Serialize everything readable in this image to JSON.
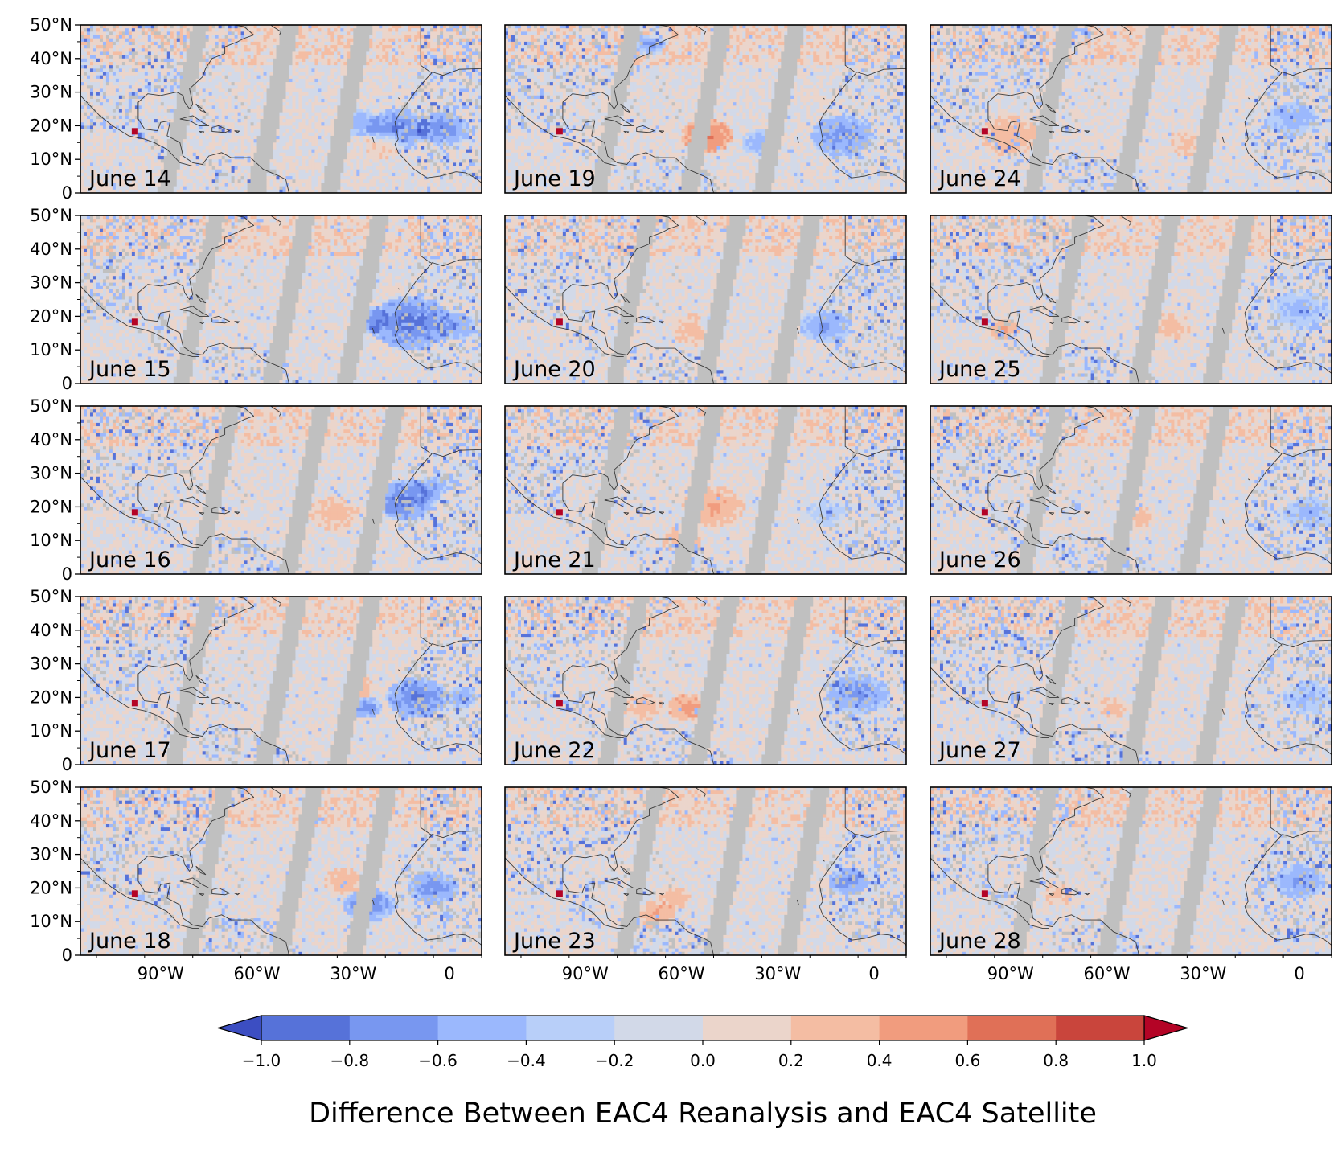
{
  "figure": {
    "title": "Difference Between EAC4 Reanalysis and EAC4 Satellite",
    "grid": {
      "rows": 5,
      "cols": 3
    },
    "map_extent": {
      "lon_min": -115,
      "lon_max": 10,
      "lat_min": 0,
      "lat_max": 50
    },
    "lat_ticks": [
      {
        "value": 0,
        "label": "0"
      },
      {
        "value": 10,
        "label": "10°N"
      },
      {
        "value": 20,
        "label": "20°N"
      },
      {
        "value": 30,
        "label": "30°N"
      },
      {
        "value": 40,
        "label": "40°N"
      },
      {
        "value": 50,
        "label": "50°N"
      }
    ],
    "lon_ticks": [
      {
        "value": -90,
        "label": "90°W"
      },
      {
        "value": -60,
        "label": "60°W"
      },
      {
        "value": -30,
        "label": "30°W"
      },
      {
        "value": 0,
        "label": "0"
      }
    ],
    "panels": [
      {
        "label": "June 14",
        "features": [
          {
            "lon": -16,
            "lat": 19,
            "r": 6,
            "v": -0.9
          },
          {
            "lon": -2,
            "lat": 19,
            "r": 5,
            "v": -0.85
          },
          {
            "lon": -28,
            "lat": 21,
            "r": 4,
            "v": -0.6
          },
          {
            "lon": -20,
            "lat": 14,
            "r": 4,
            "v": 0.25
          }
        ]
      },
      {
        "label": "June 15",
        "features": [
          {
            "lon": -12,
            "lat": 18,
            "r": 8,
            "v": -0.95
          },
          {
            "lon": -25,
            "lat": 19,
            "r": 4,
            "v": -0.7
          },
          {
            "lon": 2,
            "lat": 17,
            "r": 4,
            "v": -0.7
          }
        ]
      },
      {
        "label": "June 16",
        "features": [
          {
            "lon": -14,
            "lat": 22,
            "r": 6,
            "v": -0.95
          },
          {
            "lon": -36,
            "lat": 18,
            "r": 5,
            "v": 0.35
          },
          {
            "lon": -5,
            "lat": 26,
            "r": 3,
            "v": -0.7
          }
        ]
      },
      {
        "label": "June 17",
        "features": [
          {
            "lon": -10,
            "lat": 20,
            "r": 6,
            "v": -0.9
          },
          {
            "lon": -26,
            "lat": 17,
            "r": 3,
            "v": -0.8
          },
          {
            "lon": -28,
            "lat": 23,
            "r": 3,
            "v": 0.35
          },
          {
            "lon": 4,
            "lat": 20,
            "r": 3,
            "v": -0.7
          }
        ]
      },
      {
        "label": "June 18",
        "features": [
          {
            "lon": -25,
            "lat": 15,
            "r": 5,
            "v": -0.85
          },
          {
            "lon": -33,
            "lat": 22,
            "r": 4,
            "v": 0.4
          },
          {
            "lon": -5,
            "lat": 20,
            "r": 5,
            "v": -0.8
          }
        ]
      },
      {
        "label": "June 19",
        "features": [
          {
            "lon": -52,
            "lat": 17,
            "r": 5,
            "v": 0.7
          },
          {
            "lon": -10,
            "lat": 17,
            "r": 6,
            "v": -0.85
          },
          {
            "lon": -35,
            "lat": 15,
            "r": 4,
            "v": -0.6
          },
          {
            "lon": -70,
            "lat": 44,
            "r": 3,
            "v": -0.8
          }
        ]
      },
      {
        "label": "June 20",
        "features": [
          {
            "lon": -55,
            "lat": 16,
            "r": 5,
            "v": 0.35
          },
          {
            "lon": -50,
            "lat": 18,
            "r": 3,
            "v": -0.5
          },
          {
            "lon": -15,
            "lat": 17,
            "r": 5,
            "v": -0.7
          }
        ]
      },
      {
        "label": "June 21",
        "features": [
          {
            "lon": -50,
            "lat": 20,
            "r": 6,
            "v": 0.45
          },
          {
            "lon": -60,
            "lat": 10,
            "r": 4,
            "v": 0.3
          },
          {
            "lon": -15,
            "lat": 18,
            "r": 4,
            "v": -0.4
          }
        ]
      },
      {
        "label": "June 22",
        "features": [
          {
            "lon": -58,
            "lat": 17,
            "r": 4,
            "v": 0.55
          },
          {
            "lon": -72,
            "lat": 17,
            "r": 4,
            "v": 0.3
          },
          {
            "lon": -5,
            "lat": 21,
            "r": 6,
            "v": -0.8
          }
        ]
      },
      {
        "label": "June 23",
        "features": [
          {
            "lon": -68,
            "lat": 12,
            "r": 4,
            "v": 0.45
          },
          {
            "lon": -62,
            "lat": 17,
            "r": 3,
            "v": 0.4
          },
          {
            "lon": -8,
            "lat": 22,
            "r": 4,
            "v": -0.85
          }
        ]
      },
      {
        "label": "June 24",
        "features": [
          {
            "lon": -90,
            "lat": 17,
            "r": 6,
            "v": 0.4
          },
          {
            "lon": -35,
            "lat": 15,
            "r": 4,
            "v": 0.25
          },
          {
            "lon": -2,
            "lat": 22,
            "r": 5,
            "v": -0.6
          }
        ]
      },
      {
        "label": "June 25",
        "features": [
          {
            "lon": -92,
            "lat": 16,
            "r": 3,
            "v": 0.45
          },
          {
            "lon": -40,
            "lat": 17,
            "r": 4,
            "v": 0.3
          },
          {
            "lon": 0,
            "lat": 22,
            "r": 6,
            "v": -0.5
          }
        ]
      },
      {
        "label": "June 26",
        "features": [
          {
            "lon": -50,
            "lat": 17,
            "r": 3,
            "v": 0.35
          },
          {
            "lon": 3,
            "lat": 18,
            "r": 5,
            "v": -0.55
          }
        ]
      },
      {
        "label": "June 27",
        "features": [
          {
            "lon": -58,
            "lat": 17,
            "r": 3,
            "v": 0.35
          },
          {
            "lon": 3,
            "lat": 20,
            "r": 5,
            "v": -0.5
          }
        ]
      },
      {
        "label": "June 28",
        "features": [
          {
            "lon": -75,
            "lat": 18,
            "r": 3,
            "v": 0.3
          },
          {
            "lon": 0,
            "lat": 22,
            "r": 5,
            "v": -0.7
          }
        ]
      }
    ],
    "colorbar": {
      "levels": [
        -1.0,
        -0.8,
        -0.6,
        -0.4,
        -0.2,
        0.0,
        0.2,
        0.4,
        0.6,
        0.8,
        1.0
      ],
      "tick_labels": [
        "−1.0",
        "−0.8",
        "−0.6",
        "−0.4",
        "−0.2",
        "0.0",
        "0.2",
        "0.4",
        "0.6",
        "0.8",
        "1.0"
      ],
      "colors": [
        "#5672d9",
        "#7897f0",
        "#9bb8fd",
        "#b8cff9",
        "#d2d9e8",
        "#ebd5cb",
        "#f4bda3",
        "#f19c7e",
        "#e07057",
        "#c9453c"
      ],
      "under_color": "#3c4ec2",
      "over_color": "#b40426",
      "extend": "both"
    },
    "colors": {
      "missing": "#c0c0c0",
      "coastline": "#3a3a3a",
      "base": "#d0d9e8"
    }
  }
}
